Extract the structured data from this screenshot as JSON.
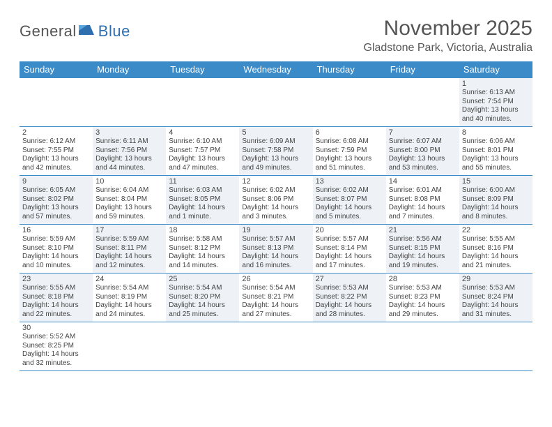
{
  "logo": {
    "text1": "General",
    "text2": "Blue",
    "text1_color": "#555555",
    "text2_color": "#2f6fb0",
    "icon_color": "#2f6fb0"
  },
  "header": {
    "month_title": "November 2025",
    "location": "Gladstone Park, Victoria, Australia"
  },
  "colors": {
    "header_bar": "#3b8bc9",
    "row_border": "#3b8bc9",
    "alt_bg": "#eef2f6",
    "text": "#444444"
  },
  "weekdays": [
    "Sunday",
    "Monday",
    "Tuesday",
    "Wednesday",
    "Thursday",
    "Friday",
    "Saturday"
  ],
  "weeks": [
    [
      null,
      null,
      null,
      null,
      null,
      null,
      {
        "n": "1",
        "sunrise": "Sunrise: 6:13 AM",
        "sunset": "Sunset: 7:54 PM",
        "d1": "Daylight: 13 hours",
        "d2": "and 40 minutes."
      }
    ],
    [
      {
        "n": "2",
        "sunrise": "Sunrise: 6:12 AM",
        "sunset": "Sunset: 7:55 PM",
        "d1": "Daylight: 13 hours",
        "d2": "and 42 minutes."
      },
      {
        "n": "3",
        "sunrise": "Sunrise: 6:11 AM",
        "sunset": "Sunset: 7:56 PM",
        "d1": "Daylight: 13 hours",
        "d2": "and 44 minutes."
      },
      {
        "n": "4",
        "sunrise": "Sunrise: 6:10 AM",
        "sunset": "Sunset: 7:57 PM",
        "d1": "Daylight: 13 hours",
        "d2": "and 47 minutes."
      },
      {
        "n": "5",
        "sunrise": "Sunrise: 6:09 AM",
        "sunset": "Sunset: 7:58 PM",
        "d1": "Daylight: 13 hours",
        "d2": "and 49 minutes."
      },
      {
        "n": "6",
        "sunrise": "Sunrise: 6:08 AM",
        "sunset": "Sunset: 7:59 PM",
        "d1": "Daylight: 13 hours",
        "d2": "and 51 minutes."
      },
      {
        "n": "7",
        "sunrise": "Sunrise: 6:07 AM",
        "sunset": "Sunset: 8:00 PM",
        "d1": "Daylight: 13 hours",
        "d2": "and 53 minutes."
      },
      {
        "n": "8",
        "sunrise": "Sunrise: 6:06 AM",
        "sunset": "Sunset: 8:01 PM",
        "d1": "Daylight: 13 hours",
        "d2": "and 55 minutes."
      }
    ],
    [
      {
        "n": "9",
        "sunrise": "Sunrise: 6:05 AM",
        "sunset": "Sunset: 8:02 PM",
        "d1": "Daylight: 13 hours",
        "d2": "and 57 minutes."
      },
      {
        "n": "10",
        "sunrise": "Sunrise: 6:04 AM",
        "sunset": "Sunset: 8:04 PM",
        "d1": "Daylight: 13 hours",
        "d2": "and 59 minutes."
      },
      {
        "n": "11",
        "sunrise": "Sunrise: 6:03 AM",
        "sunset": "Sunset: 8:05 PM",
        "d1": "Daylight: 14 hours",
        "d2": "and 1 minute."
      },
      {
        "n": "12",
        "sunrise": "Sunrise: 6:02 AM",
        "sunset": "Sunset: 8:06 PM",
        "d1": "Daylight: 14 hours",
        "d2": "and 3 minutes."
      },
      {
        "n": "13",
        "sunrise": "Sunrise: 6:02 AM",
        "sunset": "Sunset: 8:07 PM",
        "d1": "Daylight: 14 hours",
        "d2": "and 5 minutes."
      },
      {
        "n": "14",
        "sunrise": "Sunrise: 6:01 AM",
        "sunset": "Sunset: 8:08 PM",
        "d1": "Daylight: 14 hours",
        "d2": "and 7 minutes."
      },
      {
        "n": "15",
        "sunrise": "Sunrise: 6:00 AM",
        "sunset": "Sunset: 8:09 PM",
        "d1": "Daylight: 14 hours",
        "d2": "and 8 minutes."
      }
    ],
    [
      {
        "n": "16",
        "sunrise": "Sunrise: 5:59 AM",
        "sunset": "Sunset: 8:10 PM",
        "d1": "Daylight: 14 hours",
        "d2": "and 10 minutes."
      },
      {
        "n": "17",
        "sunrise": "Sunrise: 5:59 AM",
        "sunset": "Sunset: 8:11 PM",
        "d1": "Daylight: 14 hours",
        "d2": "and 12 minutes."
      },
      {
        "n": "18",
        "sunrise": "Sunrise: 5:58 AM",
        "sunset": "Sunset: 8:12 PM",
        "d1": "Daylight: 14 hours",
        "d2": "and 14 minutes."
      },
      {
        "n": "19",
        "sunrise": "Sunrise: 5:57 AM",
        "sunset": "Sunset: 8:13 PM",
        "d1": "Daylight: 14 hours",
        "d2": "and 16 minutes."
      },
      {
        "n": "20",
        "sunrise": "Sunrise: 5:57 AM",
        "sunset": "Sunset: 8:14 PM",
        "d1": "Daylight: 14 hours",
        "d2": "and 17 minutes."
      },
      {
        "n": "21",
        "sunrise": "Sunrise: 5:56 AM",
        "sunset": "Sunset: 8:15 PM",
        "d1": "Daylight: 14 hours",
        "d2": "and 19 minutes."
      },
      {
        "n": "22",
        "sunrise": "Sunrise: 5:55 AM",
        "sunset": "Sunset: 8:16 PM",
        "d1": "Daylight: 14 hours",
        "d2": "and 21 minutes."
      }
    ],
    [
      {
        "n": "23",
        "sunrise": "Sunrise: 5:55 AM",
        "sunset": "Sunset: 8:18 PM",
        "d1": "Daylight: 14 hours",
        "d2": "and 22 minutes."
      },
      {
        "n": "24",
        "sunrise": "Sunrise: 5:54 AM",
        "sunset": "Sunset: 8:19 PM",
        "d1": "Daylight: 14 hours",
        "d2": "and 24 minutes."
      },
      {
        "n": "25",
        "sunrise": "Sunrise: 5:54 AM",
        "sunset": "Sunset: 8:20 PM",
        "d1": "Daylight: 14 hours",
        "d2": "and 25 minutes."
      },
      {
        "n": "26",
        "sunrise": "Sunrise: 5:54 AM",
        "sunset": "Sunset: 8:21 PM",
        "d1": "Daylight: 14 hours",
        "d2": "and 27 minutes."
      },
      {
        "n": "27",
        "sunrise": "Sunrise: 5:53 AM",
        "sunset": "Sunset: 8:22 PM",
        "d1": "Daylight: 14 hours",
        "d2": "and 28 minutes."
      },
      {
        "n": "28",
        "sunrise": "Sunrise: 5:53 AM",
        "sunset": "Sunset: 8:23 PM",
        "d1": "Daylight: 14 hours",
        "d2": "and 29 minutes."
      },
      {
        "n": "29",
        "sunrise": "Sunrise: 5:53 AM",
        "sunset": "Sunset: 8:24 PM",
        "d1": "Daylight: 14 hours",
        "d2": "and 31 minutes."
      }
    ],
    [
      {
        "n": "30",
        "sunrise": "Sunrise: 5:52 AM",
        "sunset": "Sunset: 8:25 PM",
        "d1": "Daylight: 14 hours",
        "d2": "and 32 minutes."
      },
      null,
      null,
      null,
      null,
      null,
      null
    ]
  ]
}
